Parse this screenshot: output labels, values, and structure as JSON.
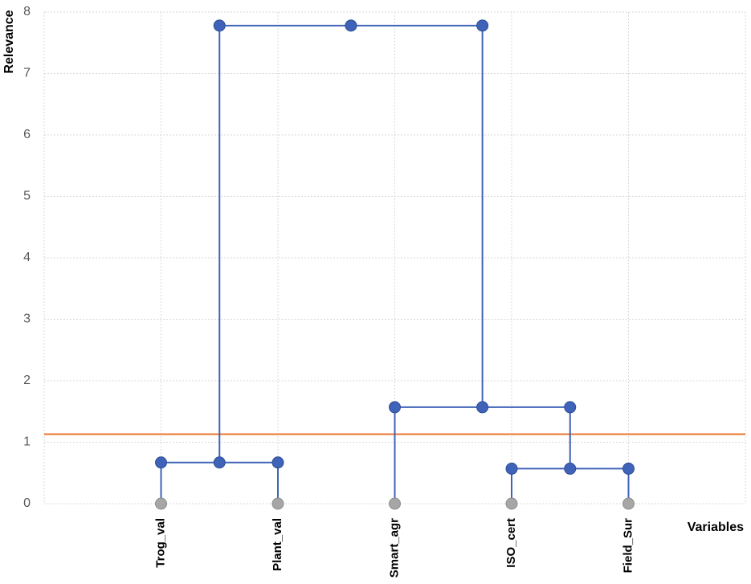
{
  "chart_data": {
    "type": "dendrogram",
    "y_label": "Relevance",
    "x_label": "Variables",
    "categories": [
      "Trog_val",
      "Plant_val",
      "Smart_agr",
      "ISO_cert",
      "Field_Sur"
    ],
    "merges": [
      {
        "children": [
          0,
          1
        ],
        "height": 0.67
      },
      {
        "children": [
          3,
          4
        ],
        "height": 0.57
      },
      {
        "children": [
          2,
          6
        ],
        "height": 1.57
      },
      {
        "children": [
          5,
          7
        ],
        "height": 7.78
      }
    ],
    "threshold": 1.13,
    "threshold_color": "#e8772e",
    "color": "#3f63b8",
    "leaf_color": "#a6a6a6",
    "ylim": [
      0,
      8
    ],
    "yticks": [
      0,
      1,
      2,
      3,
      4,
      5,
      6,
      7,
      8
    ],
    "grid": true
  }
}
